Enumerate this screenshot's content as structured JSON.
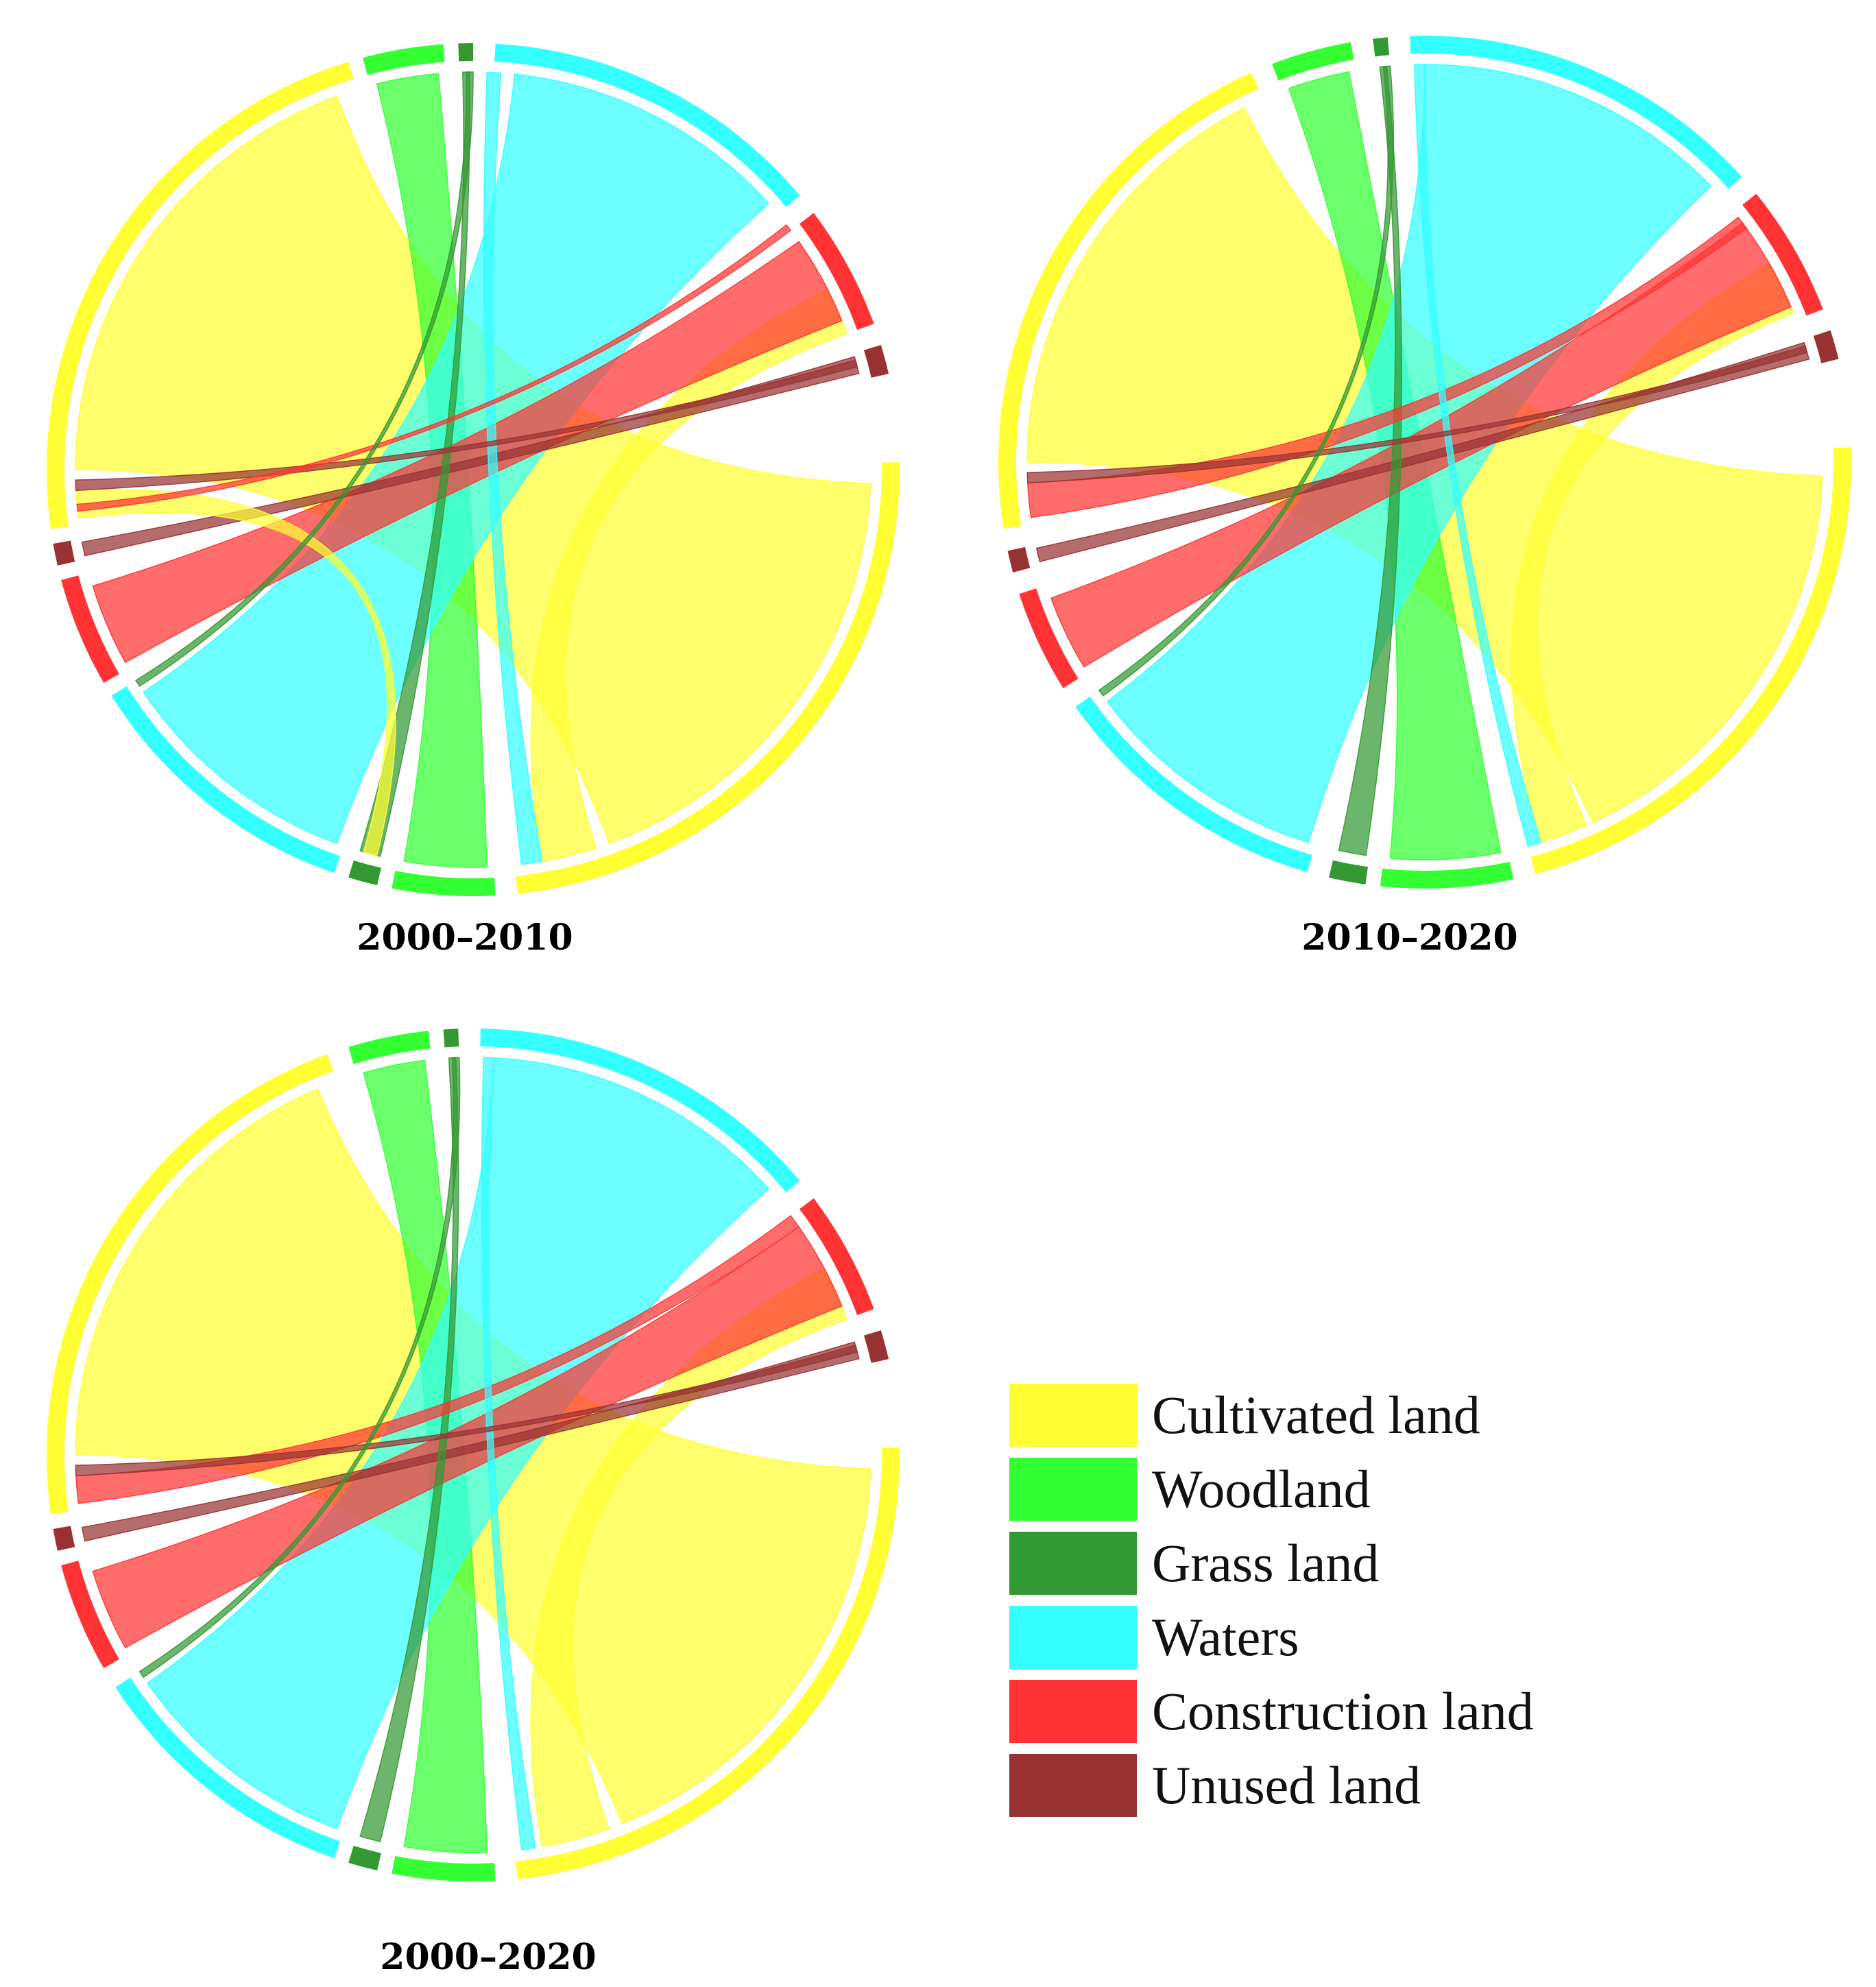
{
  "categories": [
    "Cultivated land",
    "Woodland",
    "Grass land",
    "Waters",
    "Construction land",
    "Unused land"
  ],
  "colors": {
    "Cultivated land": "#ffff33",
    "Woodland": "#33ff33",
    "Grass land": "#339933",
    "Waters": "#33ffff",
    "Construction land": "#ff3333",
    "Unused land": "#993333"
  },
  "legend": [
    {
      "label": "Cultivated land",
      "color": "#ffff33"
    },
    {
      "label": "Woodland",
      "color": "#33ff33"
    },
    {
      "label": "Grass land",
      "color": "#339933"
    },
    {
      "label": "Waters",
      "color": "#33ffff"
    },
    {
      "label": "Construction land",
      "color": "#ff3333"
    },
    {
      "label": "Unused land",
      "color": "#993333"
    }
  ],
  "chart_data": [
    {
      "type": "chord",
      "title": "2000–2010",
      "nodes": [
        {
          "name": "Cultivated land",
          "start_deg": -1,
          "end_deg": 84
        },
        {
          "name": "Woodland",
          "start_deg": 87,
          "end_deg": 101
        },
        {
          "name": "Grass land",
          "start_deg": 103,
          "end_deg": 107
        },
        {
          "name": "Waters",
          "start_deg": 109,
          "end_deg": 148
        },
        {
          "name": "Construction land",
          "start_deg": 150,
          "end_deg": 165
        },
        {
          "name": "Unused land",
          "start_deg": 167,
          "end_deg": 170
        },
        {
          "name": "Cultivated land",
          "start_deg": 172,
          "end_deg": 253
        },
        {
          "name": "Woodland",
          "start_deg": 255,
          "end_deg": 266
        },
        {
          "name": "Grass land",
          "start_deg": 268,
          "end_deg": 270
        },
        {
          "name": "Waters",
          "start_deg": 273,
          "end_deg": 320
        },
        {
          "name": "Construction land",
          "start_deg": 323,
          "end_deg": 340
        },
        {
          "name": "Unused land",
          "start_deg": 343,
          "end_deg": 347
        }
      ],
      "flows": [
        {
          "from": 0,
          "to": 6,
          "a": [
            2,
            70
          ],
          "b": [
            180,
            250
          ],
          "color": "#ffff33"
        },
        {
          "from": 0,
          "to": 4,
          "a": [
            72,
            80
          ],
          "b": [
            333,
            340
          ],
          "color": "#ffff33"
        },
        {
          "from": 1,
          "to": 7,
          "a": [
            88,
            100
          ],
          "b": [
            256,
            265
          ],
          "color": "#33ff33"
        },
        {
          "from": 3,
          "to": 9,
          "a": [
            110,
            146
          ],
          "b": [
            276,
            318
          ],
          "color": "#33ffff"
        },
        {
          "from": 4,
          "to": 10,
          "a": [
            151,
            163
          ],
          "b": [
            325,
            338
          ],
          "color": "#ff3333"
        },
        {
          "from": 5,
          "to": 11,
          "a": [
            167.5,
            169.5
          ],
          "b": [
            343.5,
            346
          ],
          "color": "#993333"
        },
        {
          "from": 2,
          "to": 8,
          "a": [
            103.5,
            106.5
          ],
          "b": [
            268.5,
            269.5
          ],
          "color": "#339933"
        },
        {
          "from": 6,
          "to": 2,
          "a": [
            173,
            177
          ],
          "b": [
            104,
            106
          ],
          "color": "#ffff33"
        },
        {
          "from": 9,
          "to": 0,
          "a": [
            272,
            274
          ],
          "b": [
            80,
            83
          ],
          "color": "#33ffff"
        },
        {
          "from": 11,
          "to": 6,
          "a": [
            344,
            345
          ],
          "b": [
            177,
            178.5
          ],
          "color": "#993333"
        },
        {
          "from": 10,
          "to": 6,
          "a": [
            322,
            323
          ],
          "b": [
            174,
            175
          ],
          "color": "#ff3333"
        },
        {
          "from": 8,
          "to": 3,
          "a": [
            269,
            270
          ],
          "b": [
            147,
            148
          ],
          "color": "#339933"
        }
      ]
    },
    {
      "type": "chord",
      "title": "2010–2020",
      "nodes": [
        {
          "name": "Cultivated land",
          "start_deg": -2,
          "end_deg": 75
        },
        {
          "name": "Woodland",
          "start_deg": 78,
          "end_deg": 96
        },
        {
          "name": "Grass land",
          "start_deg": 98,
          "end_deg": 103
        },
        {
          "name": "Waters",
          "start_deg": 106,
          "end_deg": 145
        },
        {
          "name": "Construction land",
          "start_deg": 148,
          "end_deg": 162
        },
        {
          "name": "Unused land",
          "start_deg": 165,
          "end_deg": 168
        },
        {
          "name": "Cultivated land",
          "start_deg": 171,
          "end_deg": 246
        },
        {
          "name": "Woodland",
          "start_deg": 249,
          "end_deg": 260
        },
        {
          "name": "Grass land",
          "start_deg": 263,
          "end_deg": 265
        },
        {
          "name": "Waters",
          "start_deg": 268,
          "end_deg": 318
        },
        {
          "name": "Construction land",
          "start_deg": 321,
          "end_deg": 339
        },
        {
          "name": "Unused land",
          "start_deg": 342,
          "end_deg": 346
        }
      ],
      "flows": [
        {
          "from": 0,
          "to": 6,
          "a": [
            2,
            65
          ],
          "b": [
            180,
            243
          ],
          "color": "#ffff33"
        },
        {
          "from": 0,
          "to": 4,
          "a": [
            66,
            73
          ],
          "b": [
            330,
            338
          ],
          "color": "#ffff33"
        },
        {
          "from": 1,
          "to": 7,
          "a": [
            79,
            95
          ],
          "b": [
            250,
            259
          ],
          "color": "#33ff33"
        },
        {
          "from": 3,
          "to": 9,
          "a": [
            107,
            143
          ],
          "b": [
            270,
            316
          ],
          "color": "#33ffff"
        },
        {
          "from": 4,
          "to": 10,
          "a": [
            149,
            160
          ],
          "b": [
            323,
            337
          ],
          "color": "#ff3333"
        },
        {
          "from": 5,
          "to": 11,
          "a": [
            165.5,
            167.5
          ],
          "b": [
            342.5,
            345
          ],
          "color": "#993333"
        },
        {
          "from": 2,
          "to": 8,
          "a": [
            98.5,
            102.5
          ],
          "b": [
            263.5,
            264.5
          ],
          "color": "#339933"
        },
        {
          "from": 6,
          "to": 4,
          "a": [
            172,
            177
          ],
          "b": [
            322,
            324
          ],
          "color": "#ff3333"
        },
        {
          "from": 9,
          "to": 0,
          "a": [
            268.5,
            270
          ],
          "b": [
            73,
            75
          ],
          "color": "#33ffff"
        },
        {
          "from": 11,
          "to": 6,
          "a": [
            343,
            344
          ],
          "b": [
            177,
            178.5
          ],
          "color": "#993333"
        },
        {
          "from": 8,
          "to": 3,
          "a": [
            264,
            265
          ],
          "b": [
            144,
            145
          ],
          "color": "#339933"
        }
      ]
    },
    {
      "type": "chord",
      "title": "2000–2020",
      "nodes": [
        {
          "name": "Cultivated land",
          "start_deg": -1,
          "end_deg": 84
        },
        {
          "name": "Woodland",
          "start_deg": 87,
          "end_deg": 101
        },
        {
          "name": "Grass land",
          "start_deg": 103,
          "end_deg": 107
        },
        {
          "name": "Waters",
          "start_deg": 109,
          "end_deg": 147
        },
        {
          "name": "Construction land",
          "start_deg": 150,
          "end_deg": 165
        },
        {
          "name": "Unused land",
          "start_deg": 167,
          "end_deg": 170
        },
        {
          "name": "Cultivated land",
          "start_deg": 172,
          "end_deg": 250
        },
        {
          "name": "Woodland",
          "start_deg": 253,
          "end_deg": 264
        },
        {
          "name": "Grass land",
          "start_deg": 266,
          "end_deg": 268
        },
        {
          "name": "Waters",
          "start_deg": 271,
          "end_deg": 320
        },
        {
          "name": "Construction land",
          "start_deg": 323,
          "end_deg": 340
        },
        {
          "name": "Unused land",
          "start_deg": 343,
          "end_deg": 347
        }
      ],
      "flows": [
        {
          "from": 0,
          "to": 6,
          "a": [
            2,
            68
          ],
          "b": [
            180,
            247
          ],
          "color": "#ffff33"
        },
        {
          "from": 0,
          "to": 4,
          "a": [
            70,
            80
          ],
          "b": [
            332,
            340
          ],
          "color": "#ffff33"
        },
        {
          "from": 1,
          "to": 7,
          "a": [
            88,
            100
          ],
          "b": [
            254,
            263
          ],
          "color": "#33ff33"
        },
        {
          "from": 3,
          "to": 9,
          "a": [
            110,
            145
          ],
          "b": [
            273,
            318
          ],
          "color": "#33ffff"
        },
        {
          "from": 4,
          "to": 10,
          "a": [
            151,
            163
          ],
          "b": [
            325,
            338
          ],
          "color": "#ff3333"
        },
        {
          "from": 5,
          "to": 11,
          "a": [
            167.5,
            169.5
          ],
          "b": [
            343.5,
            346
          ],
          "color": "#993333"
        },
        {
          "from": 2,
          "to": 8,
          "a": [
            103.5,
            106.5
          ],
          "b": [
            266.5,
            267.5
          ],
          "color": "#339933"
        },
        {
          "from": 6,
          "to": 4,
          "a": [
            173,
            177
          ],
          "b": [
            323,
            325
          ],
          "color": "#ff3333"
        },
        {
          "from": 9,
          "to": 0,
          "a": [
            271.5,
            273
          ],
          "b": [
            81,
            83
          ],
          "color": "#33ffff"
        },
        {
          "from": 11,
          "to": 6,
          "a": [
            344,
            345
          ],
          "b": [
            177,
            178.5
          ],
          "color": "#993333"
        },
        {
          "from": 8,
          "to": 3,
          "a": [
            267,
            268
          ],
          "b": [
            146,
            147
          ],
          "color": "#339933"
        }
      ]
    }
  ]
}
